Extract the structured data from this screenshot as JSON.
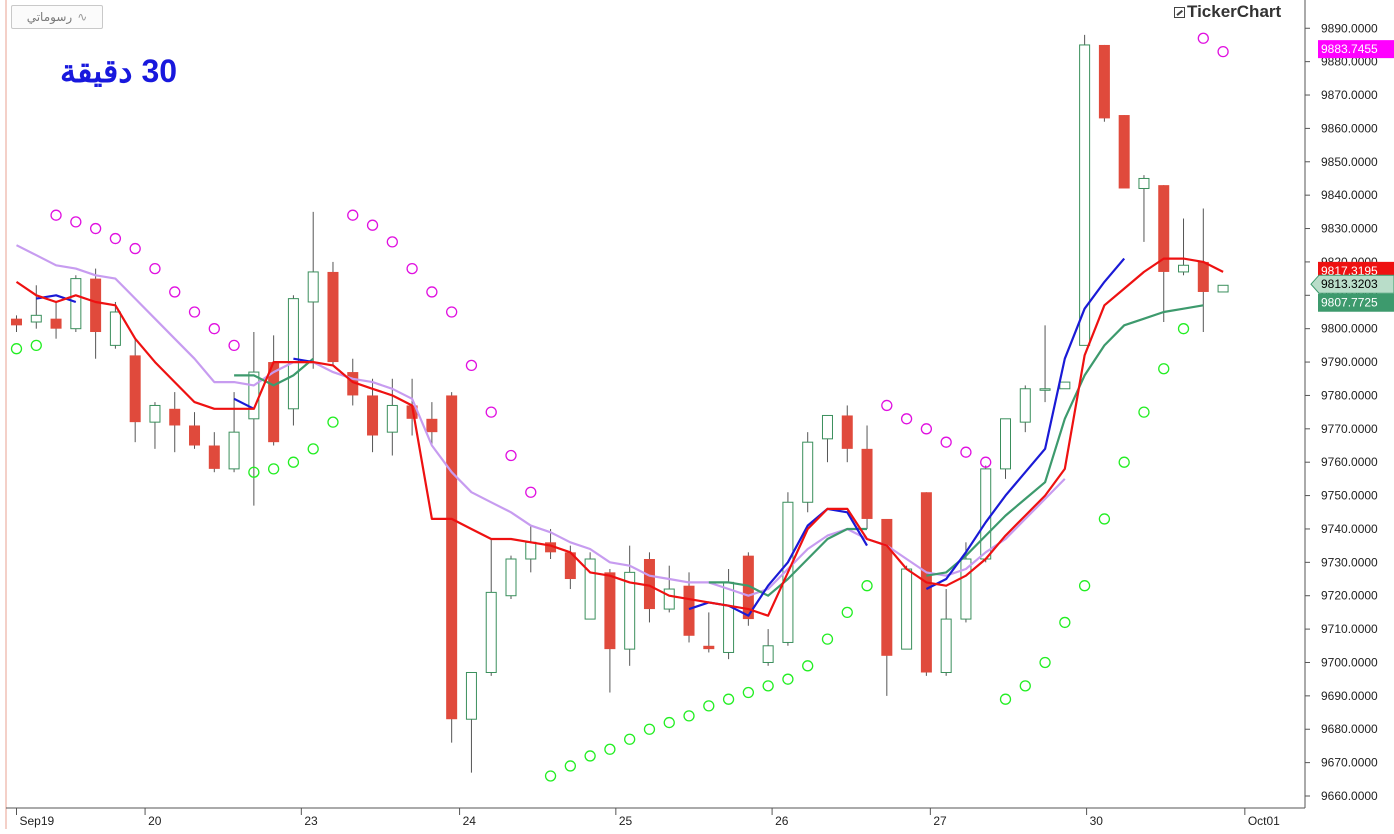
{
  "toolbar": {
    "drawings_label": "رسوماتي",
    "drawings_icon": "trendline-icon"
  },
  "period_label": "30 دقيقة",
  "brand": "TickerChart",
  "colors": {
    "up_candle": "#3a8f5c",
    "down_candle": "#e04a3c",
    "sar_above": "#e010e0",
    "sar_below": "#22ee22",
    "ema_fast_red": "#ee1111",
    "ema_slow_lilac": "#c79cf0",
    "ema_mid_blue": "#1a1ad6",
    "ema_mid_green": "#3d9a6d",
    "axis": "#555555",
    "grid_tick": "#555555"
  },
  "chart_data": {
    "type": "candlestick",
    "ylim": [
      9656,
      9891
    ],
    "yticks": [
      "9660.0000",
      "9670.0000",
      "9680.0000",
      "9690.0000",
      "9700.0000",
      "9710.0000",
      "9720.0000",
      "9730.0000",
      "9740.0000",
      "9750.0000",
      "9760.0000",
      "9770.0000",
      "9780.0000",
      "9790.0000",
      "9800.0000",
      "9810.0000",
      "9820.0000",
      "9830.0000",
      "9840.0000",
      "9850.0000",
      "9860.0000",
      "9870.0000",
      "9880.0000",
      "9890.0000"
    ],
    "xticks": [
      {
        "label": "Sep19",
        "bar": 0
      },
      {
        "label": "20",
        "bar": 6.5
      },
      {
        "label": "23",
        "bar": 14.4
      },
      {
        "label": "24",
        "bar": 22.4
      },
      {
        "label": "25",
        "bar": 30.3
      },
      {
        "label": "26",
        "bar": 38.2
      },
      {
        "label": "27",
        "bar": 46.2
      },
      {
        "label": "30",
        "bar": 54.1
      },
      {
        "label": "Oct01",
        "bar": 62.1
      }
    ],
    "candles": [
      {
        "o": 9803,
        "h": 9804,
        "l": 9799,
        "c": 9801
      },
      {
        "o": 9802,
        "h": 9813,
        "l": 9800,
        "c": 9804
      },
      {
        "o": 9803,
        "h": 9808,
        "l": 9797,
        "c": 9800
      },
      {
        "o": 9800,
        "h": 9816,
        "l": 9799,
        "c": 9815
      },
      {
        "o": 9815,
        "h": 9818,
        "l": 9791,
        "c": 9799
      },
      {
        "o": 9795,
        "h": 9808,
        "l": 9794,
        "c": 9805
      },
      {
        "o": 9792,
        "h": 9797,
        "l": 9766,
        "c": 9772
      },
      {
        "o": 9772,
        "h": 9778,
        "l": 9764,
        "c": 9777
      },
      {
        "o": 9776,
        "h": 9781,
        "l": 9763,
        "c": 9771
      },
      {
        "o": 9771,
        "h": 9775,
        "l": 9764,
        "c": 9765
      },
      {
        "o": 9765,
        "h": 9769,
        "l": 9757,
        "c": 9758
      },
      {
        "o": 9758,
        "h": 9781,
        "l": 9757,
        "c": 9769
      },
      {
        "o": 9773,
        "h": 9799,
        "l": 9747,
        "c": 9787
      },
      {
        "o": 9790,
        "h": 9798,
        "l": 9765,
        "c": 9766
      },
      {
        "o": 9776,
        "h": 9810,
        "l": 9771,
        "c": 9809
      },
      {
        "o": 9808,
        "h": 9835,
        "l": 9788,
        "c": 9817
      },
      {
        "o": 9817,
        "h": 9820,
        "l": 9789,
        "c": 9790
      },
      {
        "o": 9787,
        "h": 9791,
        "l": 9777,
        "c": 9780
      },
      {
        "o": 9780,
        "h": 9785,
        "l": 9763,
        "c": 9768
      },
      {
        "o": 9769,
        "h": 9785,
        "l": 9762,
        "c": 9777
      },
      {
        "o": 9777,
        "h": 9785,
        "l": 9768,
        "c": 9773
      },
      {
        "o": 9773,
        "h": 9778,
        "l": 9765,
        "c": 9769
      },
      {
        "o": 9780,
        "h": 9781,
        "l": 9676,
        "c": 9683
      },
      {
        "o": 9683,
        "h": 9697,
        "l": 9667,
        "c": 9697
      },
      {
        "o": 9697,
        "h": 9737,
        "l": 9696,
        "c": 9721
      },
      {
        "o": 9720,
        "h": 9732,
        "l": 9719,
        "c": 9731
      },
      {
        "o": 9731,
        "h": 9741,
        "l": 9727,
        "c": 9736
      },
      {
        "o": 9736,
        "h": 9740,
        "l": 9731,
        "c": 9733
      },
      {
        "o": 9733,
        "h": 9735,
        "l": 9722,
        "c": 9725
      },
      {
        "o": 9713,
        "h": 9733,
        "l": 9713,
        "c": 9731
      },
      {
        "o": 9727,
        "h": 9728,
        "l": 9691,
        "c": 9704
      },
      {
        "o": 9704,
        "h": 9735,
        "l": 9699,
        "c": 9727
      },
      {
        "o": 9731,
        "h": 9733,
        "l": 9712,
        "c": 9716
      },
      {
        "o": 9716,
        "h": 9729,
        "l": 9715,
        "c": 9722
      },
      {
        "o": 9723,
        "h": 9727,
        "l": 9706,
        "c": 9708
      },
      {
        "o": 9705,
        "h": 9715,
        "l": 9703,
        "c": 9704
      },
      {
        "o": 9703,
        "h": 9728,
        "l": 9701,
        "c": 9724
      },
      {
        "o": 9732,
        "h": 9733,
        "l": 9711,
        "c": 9713
      },
      {
        "o": 9700,
        "h": 9710,
        "l": 9699,
        "c": 9705
      },
      {
        "o": 9706,
        "h": 9751,
        "l": 9705,
        "c": 9748
      },
      {
        "o": 9748,
        "h": 9769,
        "l": 9745,
        "c": 9766
      },
      {
        "o": 9767,
        "h": 9774,
        "l": 9760,
        "c": 9774
      },
      {
        "o": 9774,
        "h": 9777,
        "l": 9760,
        "c": 9764
      },
      {
        "o": 9764,
        "h": 9771,
        "l": 9740,
        "c": 9743
      },
      {
        "o": 9743,
        "h": 9743,
        "l": 9690,
        "c": 9702
      },
      {
        "o": 9704,
        "h": 9729,
        "l": 9704,
        "c": 9728
      },
      {
        "o": 9751,
        "h": 9751,
        "l": 9696,
        "c": 9697
      },
      {
        "o": 9697,
        "h": 9722,
        "l": 9696,
        "c": 9713
      },
      {
        "o": 9713,
        "h": 9736,
        "l": 9712,
        "c": 9731
      },
      {
        "o": 9731,
        "h": 9759,
        "l": 9730,
        "c": 9758
      },
      {
        "o": 9758,
        "h": 9773,
        "l": 9755,
        "c": 9773
      },
      {
        "o": 9772,
        "h": 9783,
        "l": 9769,
        "c": 9782
      },
      {
        "o": 9782,
        "h": 9801,
        "l": 9778,
        "c": 9782
      },
      {
        "o": 9782,
        "h": 9784,
        "l": 9782,
        "c": 9784
      },
      {
        "o": 9795,
        "h": 9888,
        "l": 9795,
        "c": 9885
      },
      {
        "o": 9885,
        "h": 9885,
        "l": 9862,
        "c": 9863
      },
      {
        "o": 9864,
        "h": 9864,
        "l": 9843,
        "c": 9842
      },
      {
        "o": 9842,
        "h": 9846,
        "l": 9826,
        "c": 9845
      },
      {
        "o": 9843,
        "h": 9843,
        "l": 9802,
        "c": 9817
      },
      {
        "o": 9817,
        "h": 9833,
        "l": 9816,
        "c": 9819
      },
      {
        "o": 9820,
        "h": 9836,
        "l": 9799,
        "c": 9811
      },
      {
        "o": 9811,
        "h": 9813,
        "l": 9811,
        "c": 9813
      }
    ],
    "sar_above": [
      {
        "bar": 2,
        "v": 9834
      },
      {
        "bar": 3,
        "v": 9832
      },
      {
        "bar": 4,
        "v": 9830
      },
      {
        "bar": 5,
        "v": 9827
      },
      {
        "bar": 6,
        "v": 9824
      },
      {
        "bar": 7,
        "v": 9818
      },
      {
        "bar": 8,
        "v": 9811
      },
      {
        "bar": 9,
        "v": 9805
      },
      {
        "bar": 10,
        "v": 9800
      },
      {
        "bar": 11,
        "v": 9795
      },
      {
        "bar": 17,
        "v": 9834
      },
      {
        "bar": 18,
        "v": 9831
      },
      {
        "bar": 19,
        "v": 9826
      },
      {
        "bar": 20,
        "v": 9818
      },
      {
        "bar": 21,
        "v": 9811
      },
      {
        "bar": 22,
        "v": 9805
      },
      {
        "bar": 23,
        "v": 9789
      },
      {
        "bar": 24,
        "v": 9775
      },
      {
        "bar": 25,
        "v": 9762
      },
      {
        "bar": 26,
        "v": 9751
      },
      {
        "bar": 44,
        "v": 9777
      },
      {
        "bar": 45,
        "v": 9773
      },
      {
        "bar": 46,
        "v": 9770
      },
      {
        "bar": 47,
        "v": 9766
      },
      {
        "bar": 48,
        "v": 9763
      },
      {
        "bar": 49,
        "v": 9760
      },
      {
        "bar": 60,
        "v": 9887
      },
      {
        "bar": 61,
        "v": 9883
      }
    ],
    "sar_below": [
      {
        "bar": 0,
        "v": 9794
      },
      {
        "bar": 1,
        "v": 9795
      },
      {
        "bar": 12,
        "v": 9757
      },
      {
        "bar": 13,
        "v": 9758
      },
      {
        "bar": 14,
        "v": 9760
      },
      {
        "bar": 15,
        "v": 9764
      },
      {
        "bar": 16,
        "v": 9772
      },
      {
        "bar": 27,
        "v": 9666
      },
      {
        "bar": 28,
        "v": 9669
      },
      {
        "bar": 29,
        "v": 9672
      },
      {
        "bar": 30,
        "v": 9674
      },
      {
        "bar": 31,
        "v": 9677
      },
      {
        "bar": 32,
        "v": 9680
      },
      {
        "bar": 33,
        "v": 9682
      },
      {
        "bar": 34,
        "v": 9684
      },
      {
        "bar": 35,
        "v": 9687
      },
      {
        "bar": 36,
        "v": 9689
      },
      {
        "bar": 37,
        "v": 9691
      },
      {
        "bar": 38,
        "v": 9693
      },
      {
        "bar": 39,
        "v": 9695
      },
      {
        "bar": 40,
        "v": 9699
      },
      {
        "bar": 41,
        "v": 9707
      },
      {
        "bar": 42,
        "v": 9715
      },
      {
        "bar": 43,
        "v": 9723
      },
      {
        "bar": 50,
        "v": 9689
      },
      {
        "bar": 51,
        "v": 9693
      },
      {
        "bar": 52,
        "v": 9700
      },
      {
        "bar": 53,
        "v": 9712
      },
      {
        "bar": 54,
        "v": 9723
      },
      {
        "bar": 55,
        "v": 9743
      },
      {
        "bar": 56,
        "v": 9760
      },
      {
        "bar": 57,
        "v": 9775
      },
      {
        "bar": 58,
        "v": 9788
      },
      {
        "bar": 59,
        "v": 9800
      }
    ],
    "ema_red": [
      9814,
      9810,
      9808,
      9810,
      9808,
      9807,
      9797,
      9790,
      9784,
      9778,
      9776,
      9776,
      9776,
      9790,
      9790,
      9790,
      9789,
      9784,
      9782,
      9780,
      9777,
      9743,
      9743,
      9740,
      9737,
      9737,
      9736,
      9735,
      9733,
      9727,
      9726,
      9724,
      9723,
      9720,
      9719,
      9718,
      9717,
      9716,
      9714,
      9727,
      9740,
      9746,
      9746,
      9737,
      9735,
      9728,
      9724,
      9723,
      9726,
      9731,
      9738,
      9744,
      9750,
      9758,
      9792,
      9807,
      9812,
      9817,
      9821,
      9821,
      9820,
      9817
    ],
    "ema_lilac": [
      9825,
      9822,
      9819,
      9818,
      9816,
      9815,
      9809,
      9803,
      9797,
      9791,
      9784,
      9784,
      9783,
      9787,
      9790,
      9790,
      9787,
      9785,
      9784,
      9782,
      9779,
      9765,
      9757,
      9751,
      9748,
      9745,
      9741,
      9739,
      9736,
      9734,
      9730,
      9729,
      9726,
      9725,
      9724,
      9724,
      9722,
      9720,
      9722,
      9728,
      9734,
      9738,
      9740,
      9737,
      9735,
      9731,
      9727,
      9726,
      9728,
      9733,
      9737,
      9743,
      9749,
      9755
    ],
    "ema_blue": [
      {
        "bar": 1,
        "v": 9809
      },
      {
        "bar": 2,
        "v": 9810
      },
      {
        "bar": 3,
        "v": 9808
      },
      {
        "bar": 11,
        "v": 9779
      },
      {
        "bar": 12,
        "v": 9776
      },
      {
        "bar": 14,
        "v": 9791
      },
      {
        "bar": 15,
        "v": 9790
      },
      {
        "bar": 34,
        "v": 9716
      },
      {
        "bar": 35,
        "v": 9718
      },
      {
        "bar": 36,
        "v": 9717
      },
      {
        "bar": 37,
        "v": 9714
      },
      {
        "bar": 38,
        "v": 9723
      },
      {
        "bar": 39,
        "v": 9730
      },
      {
        "bar": 40,
        "v": 9741
      },
      {
        "bar": 41,
        "v": 9746
      },
      {
        "bar": 42,
        "v": 9745
      },
      {
        "bar": 43,
        "v": 9735
      },
      {
        "bar": 46,
        "v": 9722
      },
      {
        "bar": 47,
        "v": 9725
      },
      {
        "bar": 48,
        "v": 9733
      },
      {
        "bar": 49,
        "v": 9742
      },
      {
        "bar": 50,
        "v": 9750
      },
      {
        "bar": 51,
        "v": 9757
      },
      {
        "bar": 52,
        "v": 9764
      },
      {
        "bar": 53,
        "v": 9791
      },
      {
        "bar": 54,
        "v": 9806
      },
      {
        "bar": 55,
        "v": 9814
      },
      {
        "bar": 56,
        "v": 9821
      }
    ],
    "ema_green": [
      {
        "bar": 11,
        "v": 9786
      },
      {
        "bar": 12,
        "v": 9786
      },
      {
        "bar": 13,
        "v": 9783
      },
      {
        "bar": 14,
        "v": 9786
      },
      {
        "bar": 15,
        "v": 9791
      },
      {
        "bar": 35,
        "v": 9724
      },
      {
        "bar": 36,
        "v": 9724
      },
      {
        "bar": 37,
        "v": 9723
      },
      {
        "bar": 38,
        "v": 9720
      },
      {
        "bar": 39,
        "v": 9725
      },
      {
        "bar": 40,
        "v": 9731
      },
      {
        "bar": 41,
        "v": 9737
      },
      {
        "bar": 42,
        "v": 9740
      },
      {
        "bar": 43,
        "v": 9740
      },
      {
        "bar": 46,
        "v": 9726
      },
      {
        "bar": 47,
        "v": 9727
      },
      {
        "bar": 48,
        "v": 9732
      },
      {
        "bar": 49,
        "v": 9738
      },
      {
        "bar": 50,
        "v": 9744
      },
      {
        "bar": 51,
        "v": 9749
      },
      {
        "bar": 52,
        "v": 9754
      },
      {
        "bar": 53,
        "v": 9773
      },
      {
        "bar": 54,
        "v": 9786
      },
      {
        "bar": 55,
        "v": 9795
      },
      {
        "bar": 56,
        "v": 9801
      },
      {
        "bar": 57,
        "v": 9803
      },
      {
        "bar": 58,
        "v": 9805
      },
      {
        "bar": 59,
        "v": 9806
      },
      {
        "bar": 60,
        "v": 9807
      }
    ],
    "price_tags": [
      {
        "label": "9883.7455",
        "v": 9883.7455,
        "color": "#ff00ff",
        "shape": "rect"
      },
      {
        "label": "9817.3195",
        "v": 9817.3195,
        "color": "#ee1111",
        "shape": "rect"
      },
      {
        "label": "9813.3203",
        "v": 9813.3203,
        "color": "#3d9a6d",
        "shape": "arrow",
        "text_color": "#000000",
        "fill": "#b9ddc9"
      },
      {
        "label": "9807.7725",
        "v": 9807.7725,
        "color": "#3d9a6d",
        "shape": "rect"
      }
    ]
  }
}
